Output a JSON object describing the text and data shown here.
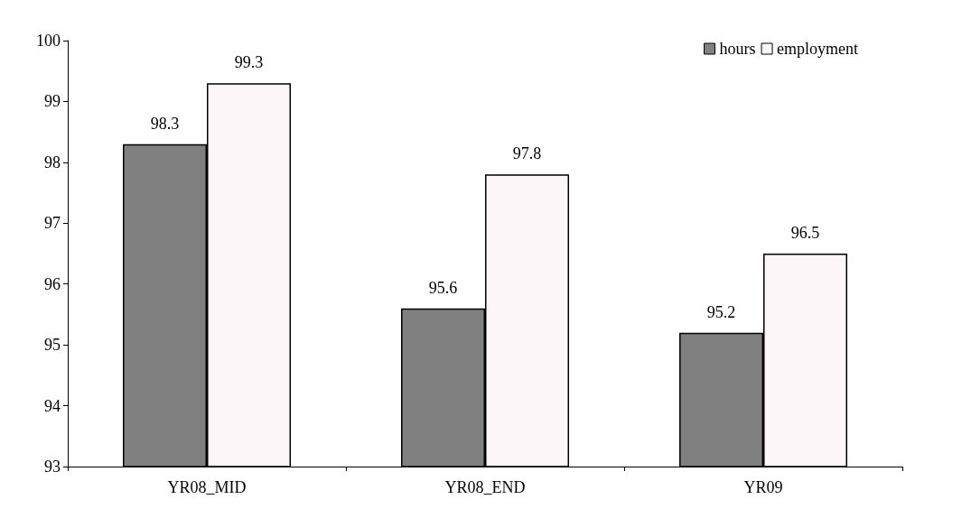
{
  "chart_data": {
    "type": "bar",
    "categories": [
      "YR08_MID",
      "YR08_END",
      "YR09"
    ],
    "series": [
      {
        "name": "hours",
        "color": "#808080",
        "values": [
          98.3,
          95.6,
          95.2
        ]
      },
      {
        "name": "employment",
        "color": "#fdf6f8",
        "values": [
          99.3,
          97.8,
          96.5
        ]
      }
    ],
    "ylim": [
      93,
      100
    ],
    "yticks": [
      93,
      94,
      95,
      96,
      97,
      98,
      99,
      100
    ],
    "data_labels": true,
    "grid": false,
    "legend": "top right"
  }
}
